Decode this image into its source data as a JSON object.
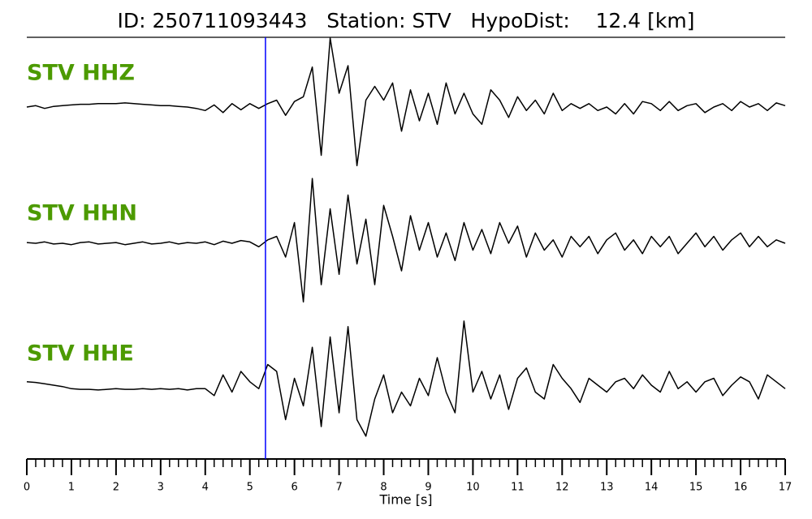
{
  "chart_data": {
    "type": "line",
    "title": "ID: 250711093443   Station: STV   HypoDist:    12.4 [km]",
    "xlabel": "Time [s]",
    "xlim": [
      0,
      17
    ],
    "xticks": [
      0,
      1,
      2,
      3,
      4,
      5,
      6,
      7,
      8,
      9,
      10,
      11,
      12,
      13,
      14,
      15,
      16,
      17
    ],
    "xminor_step": 0.2,
    "pick_time": 5.35,
    "pick_color": "#0000ff",
    "label_color": "#4c9a00",
    "x": [
      0,
      0.2,
      0.4,
      0.6,
      0.8,
      1,
      1.2,
      1.4,
      1.6,
      1.8,
      2,
      2.2,
      2.4,
      2.6,
      2.8,
      3,
      3.2,
      3.4,
      3.6,
      3.8,
      4,
      4.2,
      4.4,
      4.6,
      4.8,
      5,
      5.2,
      5.4,
      5.6,
      5.8,
      6,
      6.2,
      6.4,
      6.6,
      6.8,
      7,
      7.2,
      7.4,
      7.6,
      7.8,
      8,
      8.2,
      8.4,
      8.6,
      8.8,
      9,
      9.2,
      9.4,
      9.6,
      9.8,
      10,
      10.2,
      10.4,
      10.6,
      10.8,
      11,
      11.2,
      11.4,
      11.6,
      11.8,
      12,
      12.2,
      12.4,
      12.6,
      12.8,
      13,
      13.2,
      13.4,
      13.6,
      13.8,
      14,
      14.2,
      14.4,
      14.6,
      14.8,
      15,
      15.2,
      15.4,
      15.6,
      15.8,
      16,
      16.2,
      16.4,
      16.6,
      16.8,
      17
    ],
    "series": [
      {
        "name": "STV HHZ",
        "color": "#000000",
        "values": [
          0,
          0.02,
          -0.02,
          0.01,
          0.02,
          0.03,
          0.04,
          0.04,
          0.05,
          0.05,
          0.05,
          0.06,
          0.05,
          0.04,
          0.03,
          0.02,
          0.02,
          0.01,
          0,
          -0.02,
          -0.05,
          0.03,
          -0.08,
          0.05,
          -0.04,
          0.05,
          -0.02,
          0.05,
          0.1,
          -0.12,
          0.08,
          0.15,
          0.58,
          -0.7,
          1,
          0.2,
          0.6,
          -0.85,
          0.1,
          0.3,
          0.1,
          0.35,
          -0.35,
          0.25,
          -0.2,
          0.2,
          -0.25,
          0.35,
          -0.1,
          0.2,
          -0.1,
          -0.25,
          0.25,
          0.1,
          -0.15,
          0.15,
          -0.05,
          0.1,
          -0.1,
          0.2,
          -0.05,
          0.05,
          -0.02,
          0.05,
          -0.05,
          0,
          -0.1,
          0.05,
          -0.1,
          0.08,
          0.05,
          -0.05,
          0.08,
          -0.05,
          0.02,
          0.05,
          -0.08,
          0,
          0.05,
          -0.05,
          0.08,
          0,
          0.05,
          -0.05,
          0.06,
          0.02
        ]
      },
      {
        "name": "STV HHN",
        "color": "#000000",
        "values": [
          0.01,
          0,
          0.02,
          -0.01,
          0,
          -0.02,
          0.01,
          0.02,
          -0.01,
          0,
          0.01,
          -0.02,
          0,
          0.02,
          -0.01,
          0,
          0.02,
          -0.01,
          0.01,
          0,
          0.02,
          -0.02,
          0.03,
          0,
          0.04,
          0.02,
          -0.05,
          0.05,
          0.1,
          -0.2,
          0.3,
          -0.85,
          0.94,
          -0.6,
          0.5,
          -0.45,
          0.7,
          -0.3,
          0.35,
          -0.6,
          0.55,
          0.1,
          -0.4,
          0.4,
          -0.1,
          0.3,
          -0.2,
          0.15,
          -0.25,
          0.3,
          -0.1,
          0.2,
          -0.15,
          0.3,
          0,
          0.25,
          -0.2,
          0.15,
          -0.1,
          0.05,
          -0.2,
          0.1,
          -0.05,
          0.1,
          -0.15,
          0.05,
          0.15,
          -0.1,
          0.05,
          -0.15,
          0.1,
          -0.05,
          0.1,
          -0.15,
          0,
          0.15,
          -0.05,
          0.1,
          -0.1,
          0.05,
          0.15,
          -0.05,
          0.1,
          -0.05,
          0.05,
          0
        ]
      },
      {
        "name": "STV HHE",
        "color": "#000000",
        "values": [
          0.05,
          0.04,
          0.02,
          0,
          -0.02,
          -0.05,
          -0.06,
          -0.06,
          -0.07,
          -0.06,
          -0.05,
          -0.06,
          -0.06,
          -0.05,
          -0.06,
          -0.05,
          -0.06,
          -0.05,
          -0.07,
          -0.05,
          -0.05,
          -0.15,
          0.15,
          -0.1,
          0.2,
          0.05,
          -0.05,
          0.3,
          0.2,
          -0.5,
          0.1,
          -0.3,
          0.55,
          -0.6,
          0.7,
          -0.4,
          0.85,
          -0.5,
          -0.74,
          -0.2,
          0.15,
          -0.4,
          -0.1,
          -0.3,
          0.1,
          -0.15,
          0.4,
          -0.1,
          -0.4,
          0.93,
          -0.1,
          0.2,
          -0.2,
          0.15,
          -0.35,
          0.1,
          0.25,
          -0.1,
          -0.2,
          0.3,
          0.1,
          -0.05,
          -0.25,
          0.1,
          0,
          -0.1,
          0.05,
          0.1,
          -0.05,
          0.15,
          0,
          -0.1,
          0.2,
          -0.05,
          0.05,
          -0.1,
          0.05,
          0.1,
          -0.15,
          0,
          0.12,
          0.05,
          -0.2,
          0.15,
          0.05,
          -0.05
        ]
      }
    ]
  }
}
